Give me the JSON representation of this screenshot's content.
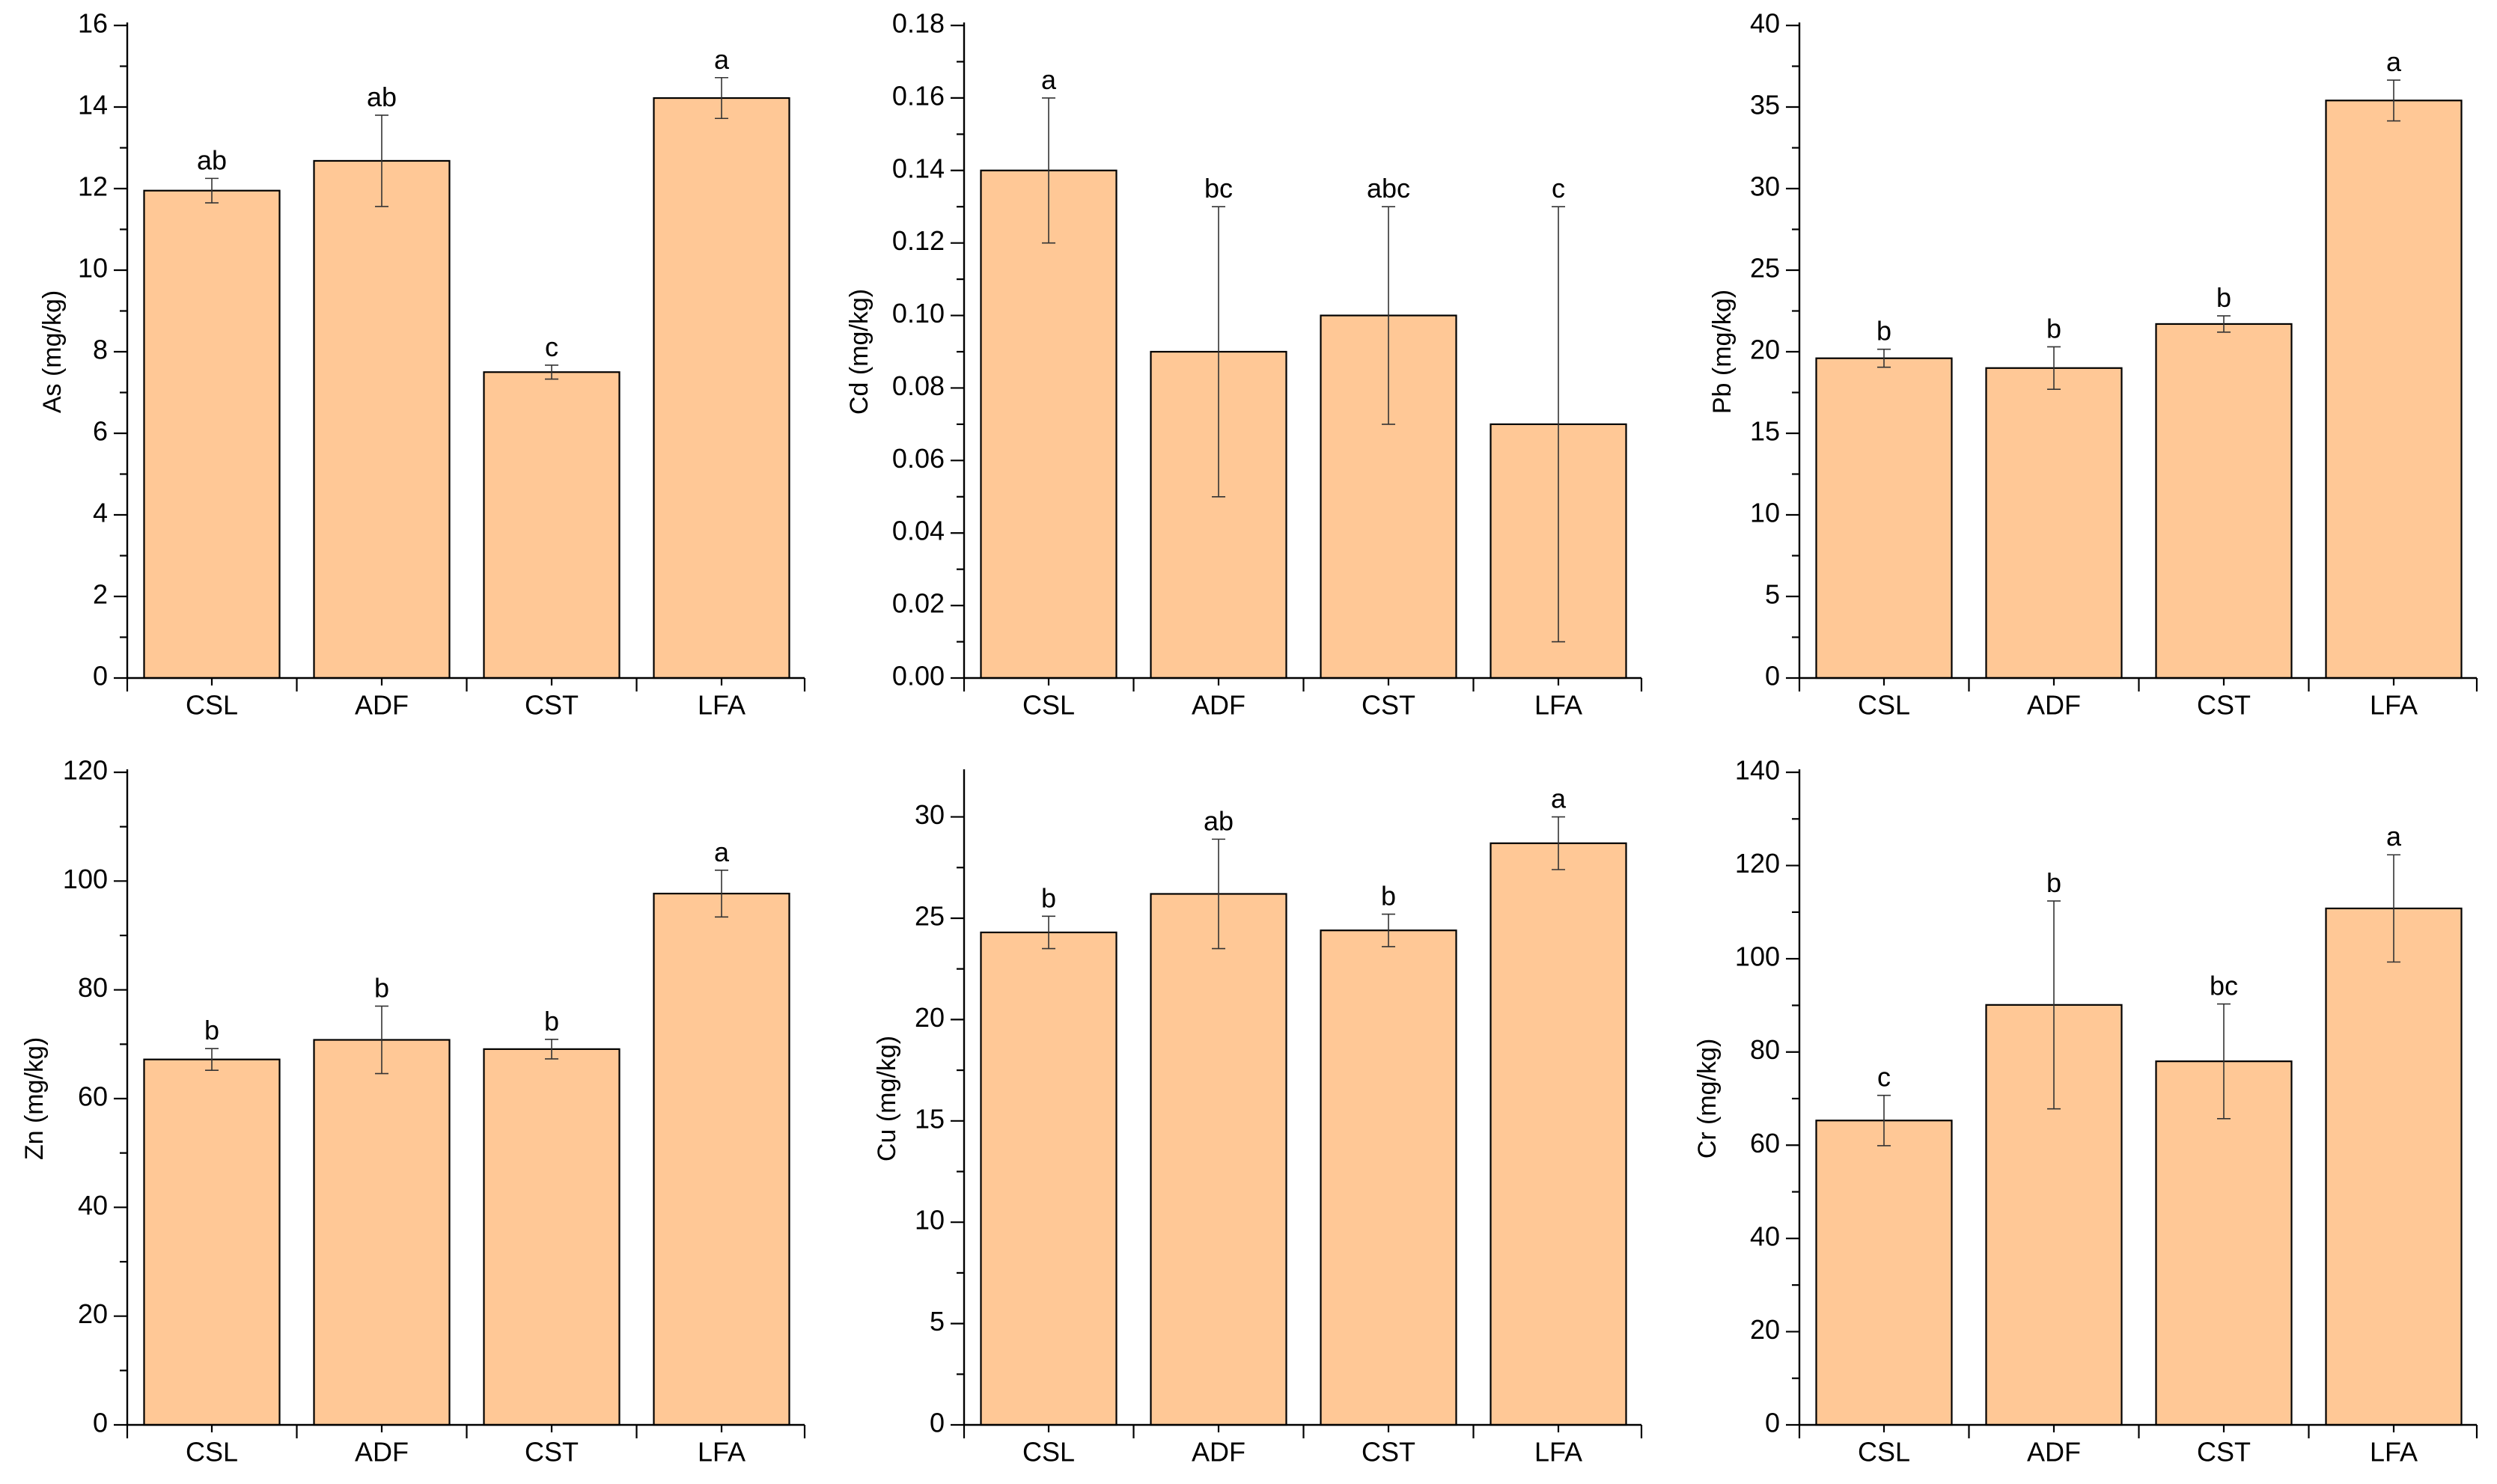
{
  "chart_data": [
    {
      "type": "bar",
      "title": "",
      "xlabel": "",
      "ylabel": "As (mg/kg)",
      "categories": [
        "CSL",
        "ADF",
        "CST",
        "LFA"
      ],
      "values": [
        11.95,
        12.68,
        7.5,
        14.22
      ],
      "errors": [
        0.3,
        1.12,
        0.17,
        0.5
      ],
      "significance": [
        "ab",
        "ab",
        "c",
        "a"
      ],
      "ylim": [
        0,
        16
      ],
      "yticks": [
        "0",
        "2",
        "4",
        "6",
        "8",
        "10",
        "12",
        "14",
        "16"
      ],
      "bar_color": "#ffc896"
    },
    {
      "type": "bar",
      "title": "",
      "xlabel": "",
      "ylabel": "Cd (mg/kg)",
      "categories": [
        "CSL",
        "ADF",
        "CST",
        "LFA"
      ],
      "values": [
        0.14,
        0.09,
        0.1,
        0.07
      ],
      "errors": [
        0.02,
        0.04,
        0.03,
        0.06
      ],
      "significance": [
        "a",
        "bc",
        "abc",
        "c"
      ],
      "ylim": [
        0,
        0.18
      ],
      "yticks": [
        "0.00",
        "0.02",
        "0.04",
        "0.06",
        "0.08",
        "0.10",
        "0.12",
        "0.14",
        "0.16",
        "0.18"
      ],
      "bar_color": "#ffc896"
    },
    {
      "type": "bar",
      "title": "",
      "xlabel": "",
      "ylabel": "Pb (mg/kg)",
      "categories": [
        "CSL",
        "ADF",
        "CST",
        "LFA"
      ],
      "values": [
        19.6,
        19.0,
        21.7,
        35.4
      ],
      "errors": [
        0.55,
        1.3,
        0.5,
        1.25
      ],
      "significance": [
        "b",
        "b",
        "b",
        "a"
      ],
      "ylim": [
        0,
        40
      ],
      "yticks": [
        "0",
        "5",
        "10",
        "15",
        "20",
        "25",
        "30",
        "35",
        "40"
      ],
      "bar_color": "#ffc896"
    },
    {
      "type": "bar",
      "title": "",
      "xlabel": "",
      "ylabel": "Zn (mg/kg)",
      "categories": [
        "CSL",
        "ADF",
        "CST",
        "LFA"
      ],
      "values": [
        67.2,
        70.8,
        69.1,
        97.7
      ],
      "errors": [
        2.0,
        6.2,
        1.8,
        4.3
      ],
      "significance": [
        "b",
        "b",
        "b",
        "a"
      ],
      "ylim": [
        0,
        120
      ],
      "yticks": [
        "0",
        "20",
        "40",
        "60",
        "80",
        "100",
        "120"
      ],
      "bar_color": "#ffc896"
    },
    {
      "type": "bar",
      "title": "",
      "xlabel": "",
      "ylabel": "Cu (mg/kg)",
      "categories": [
        "CSL",
        "ADF",
        "CST",
        "LFA"
      ],
      "values": [
        24.3,
        26.2,
        24.4,
        28.7
      ],
      "errors": [
        0.8,
        2.7,
        0.8,
        1.3
      ],
      "significance": [
        "b",
        "ab",
        "b",
        "a"
      ],
      "ylim": [
        0,
        32.2
      ],
      "yticks": [
        "0",
        "5",
        "10",
        "15",
        "20",
        "25",
        "30"
      ],
      "bar_color": "#ffc896"
    },
    {
      "type": "bar",
      "title": "",
      "xlabel": "",
      "ylabel": "Cr (mg/kg)",
      "categories": [
        "CSL",
        "ADF",
        "CST",
        "LFA"
      ],
      "values": [
        65.3,
        90.1,
        78.0,
        110.8
      ],
      "errors": [
        5.4,
        22.3,
        12.3,
        11.5
      ],
      "significance": [
        "c",
        "b",
        "bc",
        "a"
      ],
      "ylim": [
        0,
        140
      ],
      "yticks": [
        "0",
        "20",
        "40",
        "60",
        "80",
        "100",
        "120",
        "140"
      ],
      "bar_color": "#ffc896"
    }
  ]
}
